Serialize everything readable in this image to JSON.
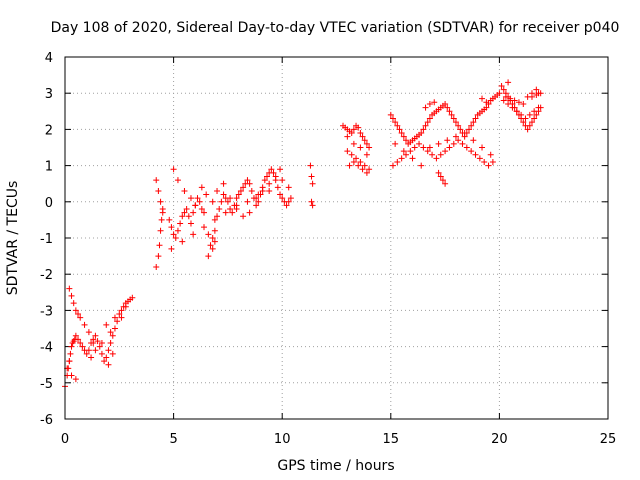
{
  "chart_data": {
    "type": "scatter",
    "title": "Day 108 of 2020, Sidereal Day-to-day VTEC variation (SDTVAR) for receiver p040",
    "xlabel": "GPS time / hours",
    "ylabel": "SDTVAR / TECUs",
    "xlim": [
      0,
      25
    ],
    "ylim": [
      -6,
      4
    ],
    "xticks": [
      0,
      5,
      10,
      15,
      20,
      25
    ],
    "yticks": [
      -6,
      -5,
      -4,
      -3,
      -2,
      -1,
      0,
      1,
      2,
      3,
      4
    ],
    "grid": true,
    "marker": "+",
    "color": "#ff0000",
    "series": [
      {
        "name": "SDTVAR",
        "x": [
          0.0,
          0.1,
          0.15,
          0.2,
          0.25,
          0.3,
          0.35,
          0.4,
          0.45,
          0.5,
          0.6,
          0.7,
          0.8,
          0.9,
          1.0,
          1.1,
          1.2,
          1.3,
          1.4,
          1.5,
          1.6,
          1.7,
          1.8,
          1.9,
          2.0,
          2.1,
          2.2,
          2.3,
          2.4,
          2.5,
          2.6,
          2.7,
          2.8,
          2.9,
          3.0,
          3.1,
          0.2,
          0.3,
          0.4,
          0.5,
          0.6,
          0.7,
          0.9,
          1.1,
          1.3,
          1.9,
          2.1,
          2.3,
          0.1,
          0.2,
          0.3,
          0.5,
          1.2,
          1.4,
          1.7,
          2.0,
          2.2,
          2.6,
          2.8,
          4.2,
          4.3,
          4.35,
          4.4,
          4.45,
          4.5,
          4.2,
          4.3,
          4.4,
          4.5,
          4.8,
          4.9,
          5.0,
          5.1,
          5.2,
          5.3,
          5.4,
          5.5,
          5.6,
          5.7,
          5.8,
          5.9,
          6.0,
          6.1,
          6.2,
          6.3,
          6.4,
          6.6,
          6.7,
          6.8,
          6.9,
          7.0,
          7.1,
          7.2,
          7.3,
          7.4,
          7.5,
          7.6,
          7.7,
          7.8,
          7.9,
          8.0,
          8.1,
          8.2,
          8.3,
          8.4,
          8.5,
          8.6,
          8.7,
          8.8,
          8.9,
          9.0,
          9.1,
          9.2,
          9.3,
          9.4,
          9.5,
          9.6,
          9.7,
          9.8,
          9.9,
          10.0,
          10.1,
          10.2,
          10.3,
          10.4,
          5.0,
          5.2,
          5.5,
          5.8,
          6.0,
          6.3,
          6.5,
          6.8,
          7.0,
          7.3,
          7.6,
          7.9,
          8.2,
          8.5,
          8.8,
          9.1,
          9.4,
          9.7,
          10.0,
          10.3,
          4.9,
          5.4,
          5.9,
          6.4,
          6.9,
          7.4,
          7.9,
          8.4,
          8.9,
          9.4,
          9.9,
          6.6,
          6.8,
          6.9,
          11.3,
          11.35,
          11.4,
          11.35,
          11.4,
          12.8,
          12.9,
          13.0,
          13.1,
          13.2,
          13.3,
          13.4,
          13.5,
          13.6,
          13.7,
          13.8,
          13.9,
          14.0,
          13.0,
          13.2,
          13.4,
          13.6,
          13.8,
          14.0,
          13.1,
          13.3,
          13.5,
          13.7,
          13.9,
          13.0,
          13.3,
          13.6,
          13.9,
          15.0,
          15.1,
          15.2,
          15.3,
          15.4,
          15.5,
          15.6,
          15.7,
          15.8,
          15.9,
          16.0,
          16.1,
          16.2,
          16.3,
          16.4,
          16.5,
          16.6,
          16.7,
          16.8,
          16.9,
          17.0,
          17.1,
          17.2,
          17.3,
          17.4,
          17.5,
          17.6,
          17.7,
          17.8,
          17.9,
          18.0,
          18.1,
          18.2,
          18.3,
          18.4,
          18.5,
          18.6,
          18.7,
          18.8,
          18.9,
          19.0,
          19.1,
          19.2,
          19.3,
          19.4,
          19.5,
          19.6,
          19.7,
          19.8,
          19.9,
          20.0,
          15.1,
          15.3,
          15.5,
          15.7,
          15.9,
          16.1,
          16.3,
          16.5,
          16.7,
          16.9,
          17.1,
          17.3,
          17.5,
          17.7,
          17.9,
          18.1,
          18.3,
          18.5,
          18.7,
          18.9,
          19.1,
          19.3,
          19.5,
          19.7,
          15.2,
          15.6,
          16.0,
          16.4,
          16.8,
          17.2,
          17.6,
          18.0,
          18.4,
          18.8,
          19.2,
          19.6,
          16.6,
          16.8,
          17.0,
          17.2,
          17.3,
          17.4,
          17.5,
          19.2,
          19.4,
          20.1,
          20.2,
          20.3,
          20.4,
          20.5,
          20.6,
          20.7,
          20.8,
          20.9,
          21.0,
          21.1,
          21.2,
          21.3,
          21.4,
          21.5,
          21.6,
          21.7,
          21.8,
          21.9,
          20.2,
          20.4,
          20.6,
          20.8,
          21.0,
          21.2,
          21.4,
          21.6,
          21.8,
          20.3,
          20.5,
          20.7,
          20.9,
          21.1,
          21.3,
          21.5,
          21.7,
          21.9,
          20.4,
          21.5,
          21.7,
          21.8
        ],
        "y": [
          -5.1,
          -4.8,
          -4.6,
          -4.4,
          -4.2,
          -4.0,
          -3.9,
          -3.85,
          -3.8,
          -3.7,
          -3.8,
          -3.9,
          -4.0,
          -4.1,
          -4.2,
          -4.1,
          -3.9,
          -3.8,
          -3.7,
          -3.85,
          -4.0,
          -4.2,
          -4.4,
          -4.3,
          -4.1,
          -3.9,
          -3.7,
          -3.5,
          -3.3,
          -3.1,
          -3.0,
          -2.9,
          -2.8,
          -2.75,
          -2.7,
          -2.65,
          -2.4,
          -2.6,
          -2.8,
          -3.0,
          -3.1,
          -3.2,
          -3.4,
          -3.6,
          -3.9,
          -3.4,
          -3.6,
          -3.2,
          -4.6,
          -4.4,
          -4.8,
          -4.9,
          -4.3,
          -4.1,
          -3.9,
          -4.5,
          -4.2,
          -3.2,
          -2.9,
          -1.8,
          -1.5,
          -1.2,
          -0.8,
          -0.5,
          -0.2,
          0.6,
          0.3,
          0.0,
          -0.3,
          -0.5,
          -0.7,
          -0.9,
          -1.0,
          -0.8,
          -0.6,
          -0.4,
          -0.3,
          -0.2,
          -0.4,
          -0.6,
          -0.3,
          -0.1,
          0.1,
          0.0,
          -0.2,
          -0.3,
          -0.9,
          -1.2,
          -1.0,
          -0.8,
          -0.4,
          -0.2,
          0.0,
          0.2,
          0.1,
          0.0,
          -0.2,
          -0.3,
          -0.1,
          0.1,
          0.2,
          0.3,
          0.4,
          0.5,
          0.6,
          0.5,
          0.3,
          0.1,
          -0.1,
          0.0,
          0.2,
          0.4,
          0.6,
          0.7,
          0.8,
          0.9,
          0.8,
          0.6,
          0.4,
          0.2,
          0.1,
          0.0,
          -0.1,
          0.0,
          0.1,
          0.9,
          0.6,
          0.3,
          0.1,
          -0.1,
          0.4,
          0.2,
          0.0,
          0.3,
          0.5,
          0.1,
          -0.2,
          -0.4,
          -0.3,
          0.1,
          0.3,
          0.5,
          0.7,
          0.6,
          0.4,
          -1.3,
          -1.1,
          -0.9,
          -0.7,
          -0.5,
          -0.3,
          -0.1,
          0.0,
          0.2,
          0.3,
          0.9,
          -1.5,
          -1.3,
          -1.1,
          1.0,
          0.7,
          0.5,
          0.0,
          -0.1,
          2.1,
          2.05,
          2.0,
          1.95,
          1.9,
          2.0,
          2.1,
          2.05,
          1.9,
          1.8,
          1.7,
          1.6,
          1.5,
          1.4,
          1.3,
          1.2,
          1.1,
          1.0,
          0.9,
          1.0,
          1.1,
          1.0,
          0.9,
          0.8,
          1.8,
          1.6,
          1.5,
          1.3,
          2.4,
          2.3,
          2.2,
          2.1,
          2.0,
          1.9,
          1.8,
          1.7,
          1.6,
          1.65,
          1.7,
          1.75,
          1.8,
          1.85,
          1.9,
          2.0,
          2.1,
          2.2,
          2.3,
          2.4,
          2.45,
          2.5,
          2.55,
          2.6,
          2.65,
          2.7,
          2.6,
          2.5,
          2.4,
          2.3,
          2.2,
          2.1,
          2.0,
          1.9,
          1.8,
          1.9,
          2.0,
          2.1,
          2.2,
          2.3,
          2.4,
          2.45,
          2.5,
          2.55,
          2.6,
          2.7,
          2.8,
          2.85,
          2.9,
          2.95,
          3.0,
          1.0,
          1.1,
          1.2,
          1.3,
          1.4,
          1.5,
          1.6,
          1.5,
          1.4,
          1.3,
          1.2,
          1.3,
          1.4,
          1.5,
          1.6,
          1.7,
          1.6,
          1.5,
          1.4,
          1.3,
          1.2,
          1.1,
          1.0,
          1.1,
          1.6,
          1.4,
          1.2,
          1.0,
          1.5,
          1.6,
          1.7,
          1.8,
          1.9,
          1.7,
          1.5,
          1.3,
          2.6,
          2.7,
          2.75,
          0.8,
          0.7,
          0.6,
          0.5,
          2.85,
          2.75,
          3.2,
          3.1,
          3.0,
          2.9,
          2.8,
          2.7,
          2.6,
          2.5,
          2.4,
          2.3,
          2.2,
          2.1,
          2.0,
          2.1,
          2.2,
          2.3,
          2.4,
          2.5,
          2.6,
          2.8,
          2.7,
          2.6,
          2.5,
          2.4,
          2.3,
          2.4,
          2.5,
          2.6,
          2.9,
          2.85,
          2.8,
          2.75,
          2.7,
          2.9,
          3.0,
          3.1,
          3.0,
          3.3,
          2.9,
          2.95,
          3.0
        ]
      }
    ]
  }
}
